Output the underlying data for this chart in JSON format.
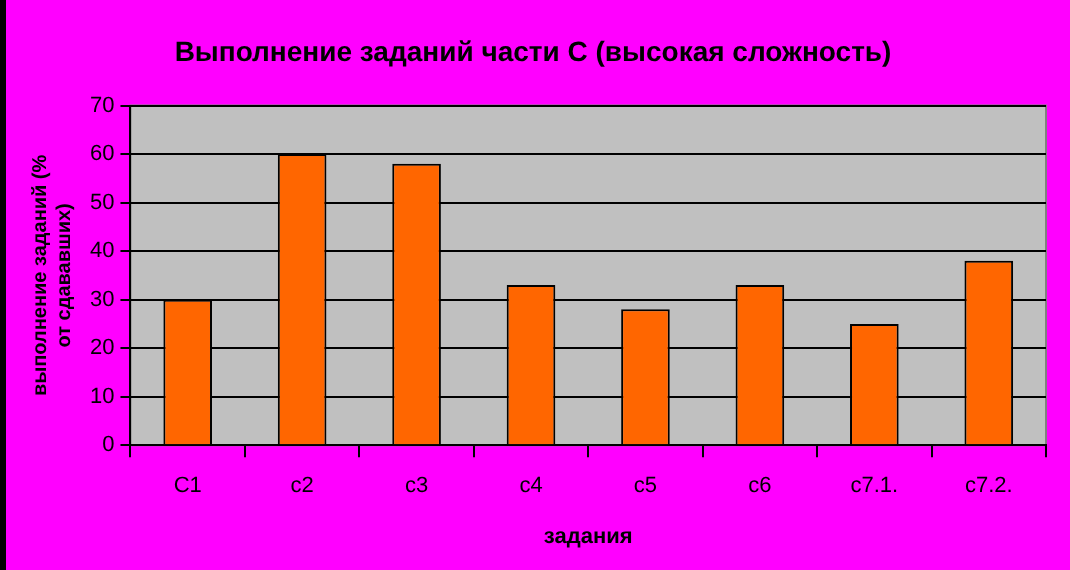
{
  "chart_data": {
    "type": "bar",
    "title": "Выполнение заданий части С (высокая сложность)",
    "xlabel": "задания",
    "ylabel": "выполнение заданий (%\nот сдававших)",
    "categories": [
      "C1",
      "c2",
      "c3",
      "c4",
      "c5",
      "c6",
      "c7.1.",
      "c7.2."
    ],
    "values": [
      30,
      60,
      58,
      33,
      28,
      33,
      25,
      38
    ],
    "color": "#ff6600",
    "ylim": [
      0,
      70
    ],
    "yticks": [
      0,
      10,
      20,
      30,
      40,
      50,
      60,
      70
    ],
    "grid": "y",
    "legend": false
  }
}
